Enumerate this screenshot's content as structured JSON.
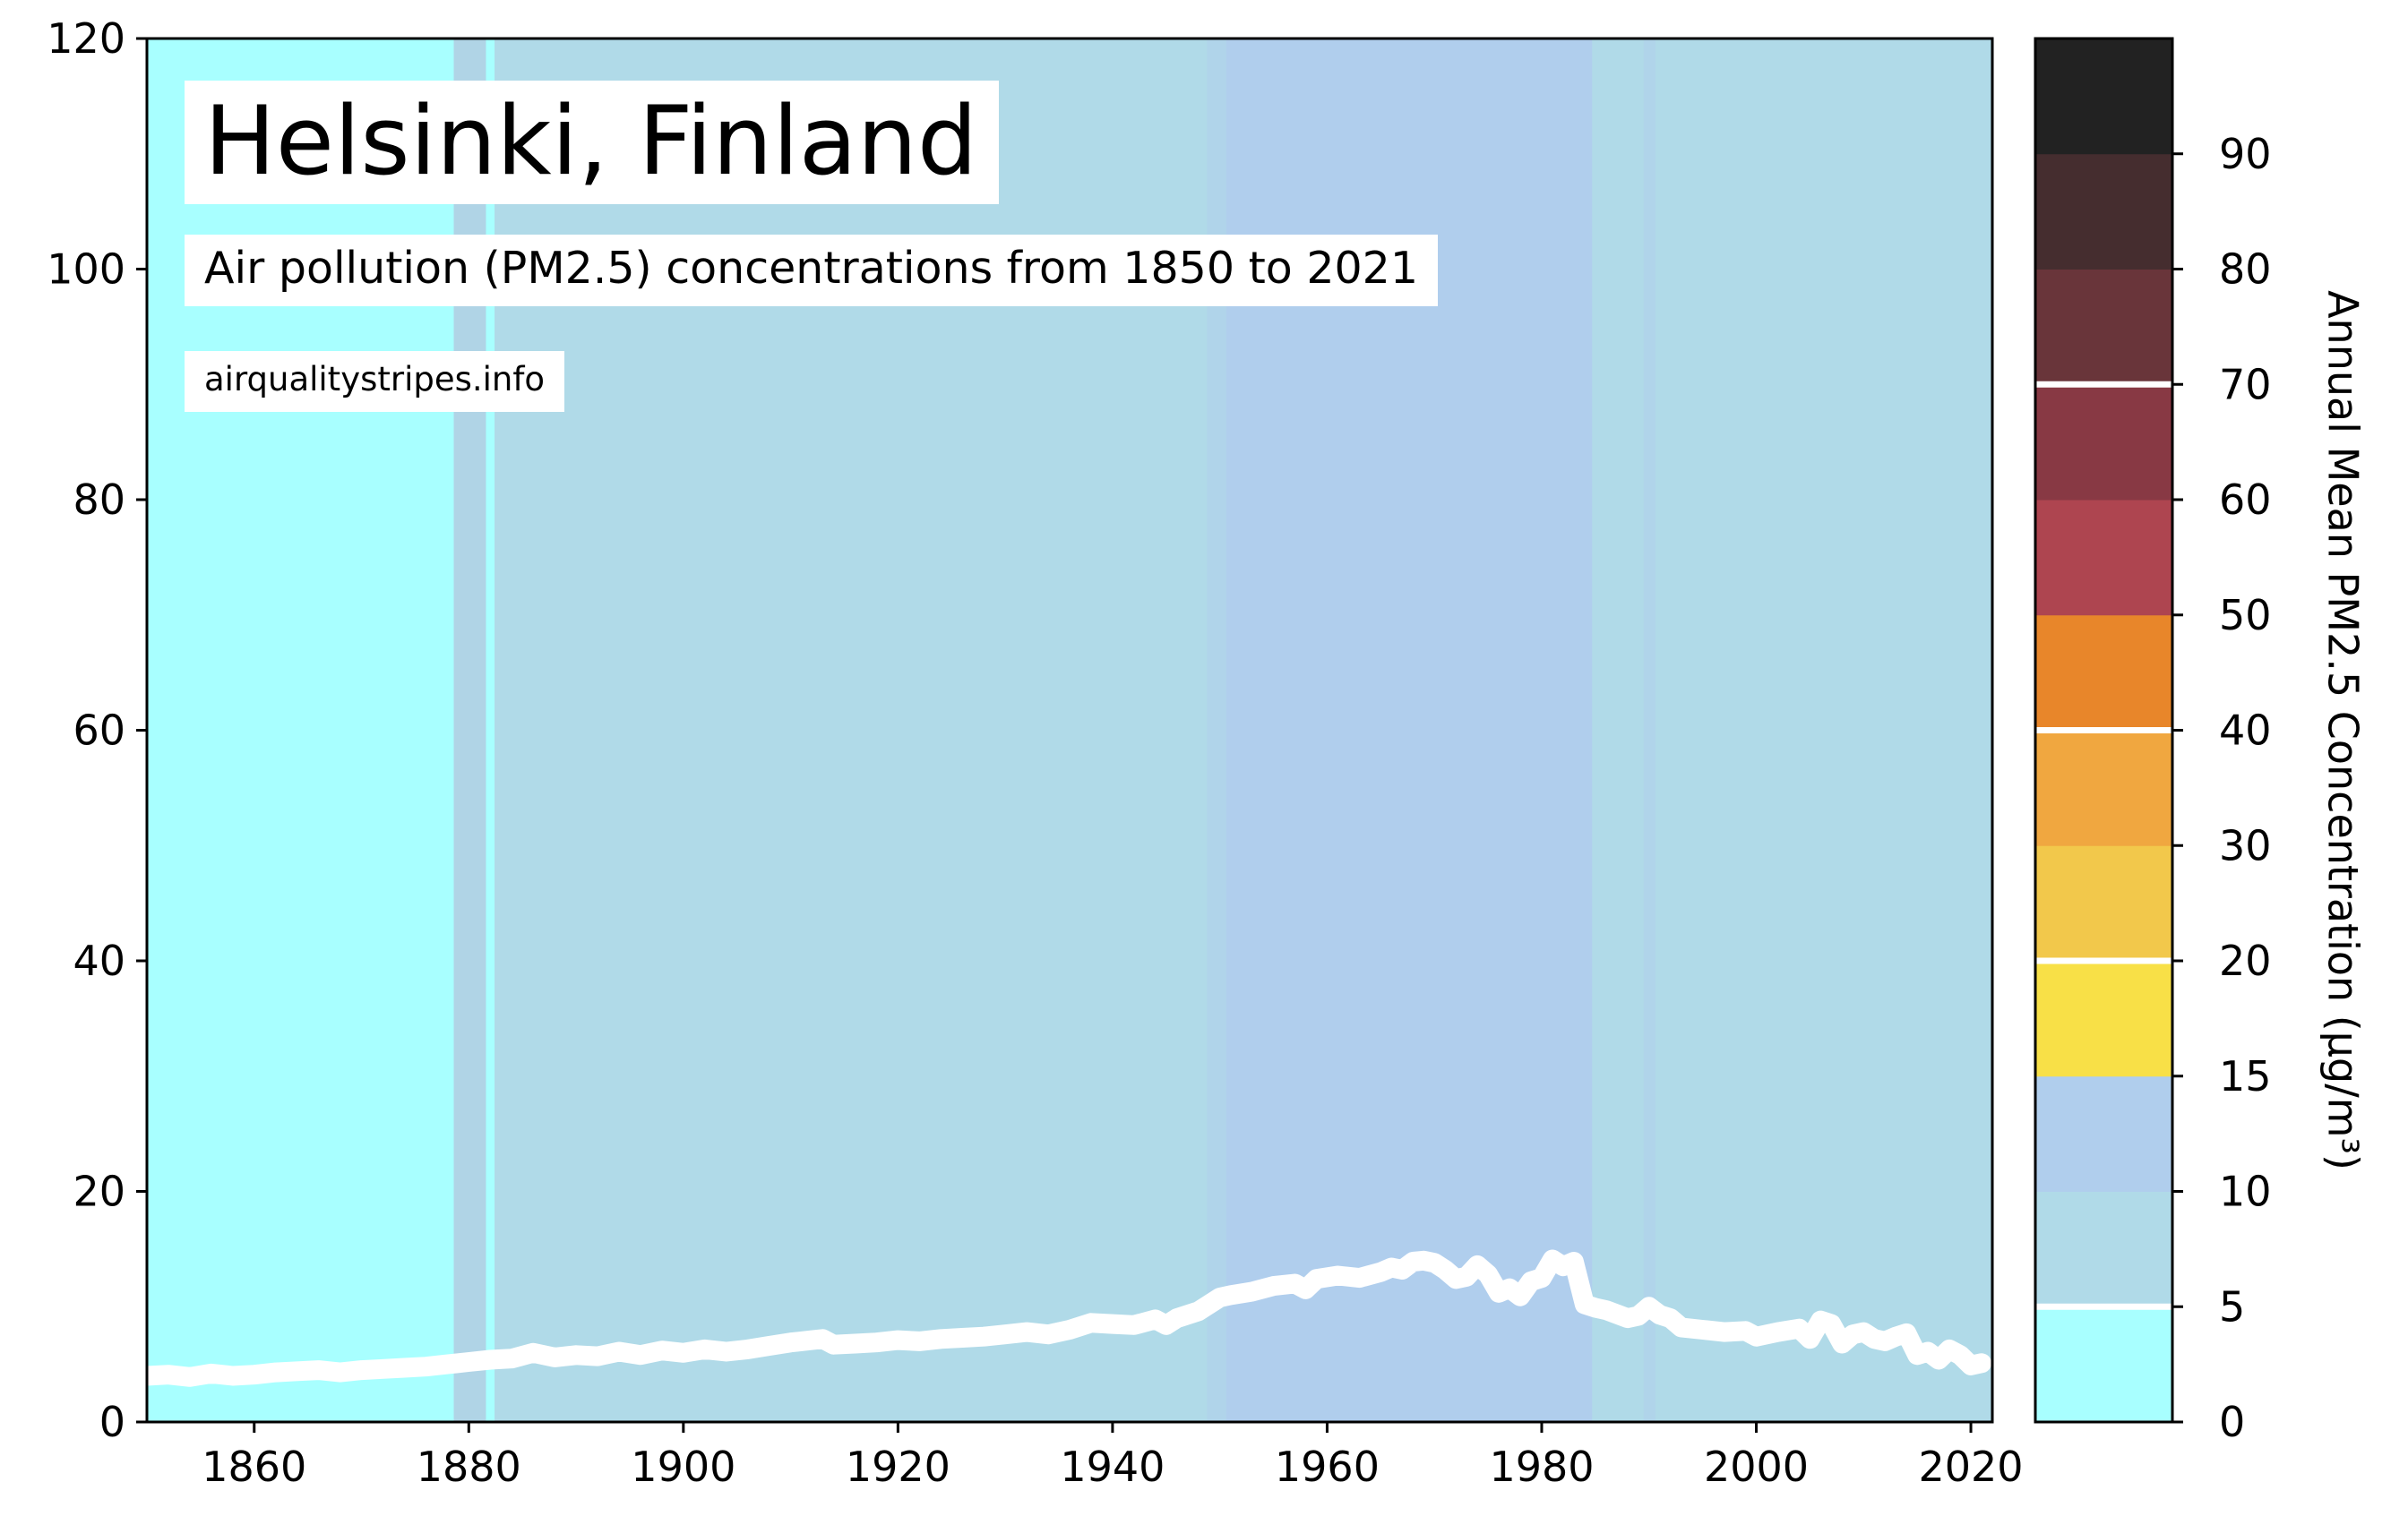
{
  "chart_data": {
    "type": "line",
    "title": "Helsinki, Finland",
    "subtitle": "Air pollution (PM2.5) concentrations from 1850 to 2021",
    "source": "airqualitystripes.info",
    "xlabel": "",
    "ylabel": "",
    "xlim": [
      1850,
      2022
    ],
    "ylim": [
      0,
      120
    ],
    "x_ticks": [
      1860,
      1880,
      1900,
      1920,
      1940,
      1960,
      1980,
      2000,
      2020
    ],
    "y_ticks": [
      0,
      20,
      40,
      60,
      80,
      100,
      120
    ],
    "line_color": "#ffffff",
    "background_stripes": [
      {
        "from": 1850,
        "to": 1878.6,
        "color": "#a8ffff"
      },
      {
        "from": 1878.6,
        "to": 1881.6,
        "color": "#b0d4e6"
      },
      {
        "from": 1881.6,
        "to": 1882.4,
        "color": "#a8ffff"
      },
      {
        "from": 1882.4,
        "to": 1948.8,
        "color": "#b0dae8"
      },
      {
        "from": 1948.8,
        "to": 1950.6,
        "color": "#b0d4ea"
      },
      {
        "from": 1950.6,
        "to": 1984.7,
        "color": "#b0ceed"
      },
      {
        "from": 1984.7,
        "to": 1989.5,
        "color": "#b0dae8"
      },
      {
        "from": 1989.5,
        "to": 1990.6,
        "color": "#b0d4ea"
      },
      {
        "from": 1990.6,
        "to": 2022,
        "color": "#b0dae8"
      }
    ],
    "series": [
      {
        "x": [
          1850,
          1852,
          1854,
          1856,
          1858,
          1860,
          1862,
          1864,
          1866,
          1868,
          1870,
          1872,
          1874,
          1876,
          1878,
          1880,
          1882,
          1884,
          1886,
          1888,
          1890,
          1892,
          1894,
          1896,
          1898,
          1900,
          1902,
          1904,
          1906,
          1908,
          1910,
          1912,
          1913,
          1914,
          1916,
          1918,
          1920,
          1922,
          1924,
          1926,
          1928,
          1930,
          1932,
          1934,
          1936,
          1938,
          1940,
          1942,
          1944,
          1945,
          1946,
          1948,
          1950,
          1951,
          1953,
          1955,
          1957,
          1958,
          1959,
          1961,
          1963,
          1965,
          1966,
          1967,
          1968,
          1969,
          1970,
          1971,
          1972,
          1973,
          1974,
          1975,
          1976,
          1977,
          1978,
          1979,
          1980,
          1981,
          1982,
          1983,
          1984,
          1985,
          1986,
          1988,
          1989,
          1990,
          1991,
          1992,
          1993,
          1995,
          1997,
          1999,
          2000,
          2002,
          2004,
          2005,
          2006,
          2007,
          2008,
          2009,
          2010,
          2011,
          2012,
          2013,
          2014,
          2015,
          2016,
          2017,
          2018,
          2019,
          2020,
          2021
        ],
        "values": [
          4.0,
          4.1,
          3.9,
          4.2,
          4.0,
          4.1,
          4.3,
          4.4,
          4.5,
          4.3,
          4.5,
          4.6,
          4.7,
          4.8,
          5.0,
          5.2,
          5.4,
          5.5,
          6.0,
          5.6,
          5.8,
          5.7,
          6.1,
          5.8,
          6.2,
          6.0,
          6.3,
          6.1,
          6.3,
          6.6,
          6.9,
          7.1,
          7.2,
          6.7,
          6.8,
          6.9,
          7.1,
          7.0,
          7.2,
          7.3,
          7.4,
          7.6,
          7.8,
          7.6,
          8.0,
          8.6,
          8.5,
          8.4,
          8.9,
          8.4,
          9.0,
          9.6,
          10.8,
          11.0,
          11.3,
          11.8,
          12.0,
          11.5,
          12.4,
          12.7,
          12.5,
          13.0,
          13.4,
          13.2,
          13.9,
          14.0,
          13.8,
          13.2,
          12.4,
          12.6,
          13.6,
          12.8,
          11.2,
          11.6,
          10.9,
          12.2,
          12.5,
          14.1,
          13.5,
          13.9,
          10.2,
          9.9,
          9.7,
          9.0,
          9.2,
          10.0,
          9.3,
          9.0,
          8.2,
          8.0,
          7.8,
          7.9,
          7.4,
          7.8,
          8.1,
          7.2,
          8.8,
          8.5,
          6.8,
          7.6,
          7.8,
          7.2,
          7.0,
          7.4,
          7.7,
          5.8,
          6.1,
          5.4,
          6.3,
          5.8,
          4.9,
          5.1
        ],
        "color": "#ffffff"
      }
    ],
    "colorbar": {
      "label": "Annual Mean PM2.5 Concentration (µg/m³)",
      "tick_labels": [
        "0",
        "5",
        "10",
        "15",
        "20",
        "30",
        "40",
        "50",
        "60",
        "70",
        "80",
        "90"
      ],
      "bins": [
        {
          "color": "#a8ffff"
        },
        {
          "color": "#b0dae8"
        },
        {
          "color": "#b0ceed"
        },
        {
          "color": "#f8e047"
        },
        {
          "color": "#f2c84b"
        },
        {
          "color": "#f0a740"
        },
        {
          "color": "#e8862a"
        },
        {
          "color": "#ae4550"
        },
        {
          "color": "#883944"
        },
        {
          "color": "#69353a"
        },
        {
          "color": "#452d2f"
        },
        {
          "color": "#222222"
        }
      ],
      "white_lines_at_bins": [
        1,
        4,
        6,
        9
      ]
    }
  }
}
